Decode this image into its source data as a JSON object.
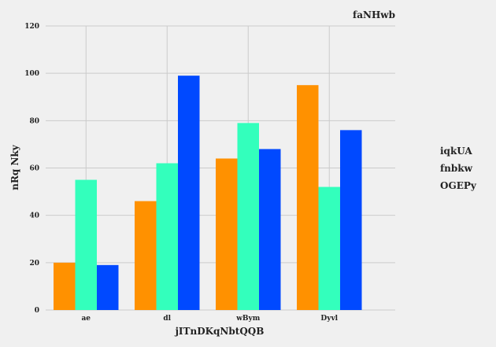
{
  "chart_data": {
    "type": "bar",
    "title": "faNHwb",
    "xlabel": "jITnDKqNbtQQB",
    "ylabel": "nRq Nky",
    "categories": [
      "ae",
      "dl",
      "wBym",
      "Dyvl"
    ],
    "series": [
      {
        "name": "iqkUA",
        "color": "#ff9100",
        "values": [
          20,
          46,
          64,
          95
        ]
      },
      {
        "name": "fnbkw",
        "color": "#33ffbc",
        "values": [
          55,
          62,
          79,
          52
        ]
      },
      {
        "name": "OGEPy",
        "color": "#0049ff",
        "values": [
          19,
          99,
          68,
          76
        ]
      }
    ],
    "ylim": [
      0,
      120
    ],
    "yticks": [
      0,
      20,
      40,
      60,
      80,
      100,
      120
    ],
    "grid": true,
    "legend": "right"
  }
}
